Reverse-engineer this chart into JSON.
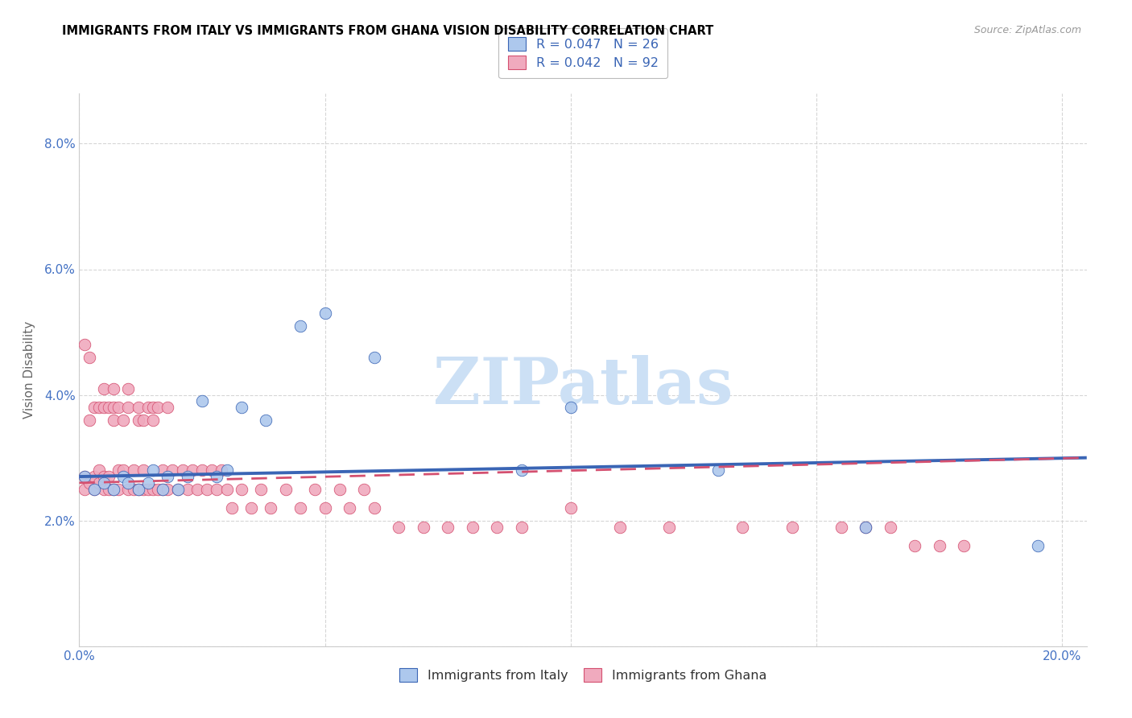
{
  "title": "IMMIGRANTS FROM ITALY VS IMMIGRANTS FROM GHANA VISION DISABILITY CORRELATION CHART",
  "source": "Source: ZipAtlas.com",
  "ylabel": "Vision Disability",
  "xlim": [
    0.0,
    0.205
  ],
  "ylim": [
    0.0,
    0.088
  ],
  "italy_R": 0.047,
  "italy_N": 26,
  "ghana_R": 0.042,
  "ghana_N": 92,
  "italy_color": "#adc8ed",
  "ghana_color": "#f0aabe",
  "italy_line_color": "#3a65b5",
  "ghana_line_color": "#d45070",
  "italy_x": [
    0.001,
    0.003,
    0.005,
    0.007,
    0.009,
    0.01,
    0.012,
    0.014,
    0.015,
    0.017,
    0.018,
    0.02,
    0.022,
    0.025,
    0.028,
    0.03,
    0.033,
    0.038,
    0.045,
    0.05,
    0.06,
    0.09,
    0.1,
    0.13,
    0.16,
    0.195
  ],
  "italy_y": [
    0.027,
    0.025,
    0.026,
    0.025,
    0.027,
    0.026,
    0.025,
    0.026,
    0.028,
    0.025,
    0.027,
    0.025,
    0.027,
    0.039,
    0.027,
    0.028,
    0.038,
    0.036,
    0.051,
    0.053,
    0.046,
    0.028,
    0.038,
    0.028,
    0.019,
    0.016
  ],
  "ghana_x": [
    0.001,
    0.001,
    0.001,
    0.002,
    0.002,
    0.002,
    0.003,
    0.003,
    0.003,
    0.004,
    0.004,
    0.004,
    0.005,
    0.005,
    0.005,
    0.005,
    0.006,
    0.006,
    0.006,
    0.007,
    0.007,
    0.007,
    0.007,
    0.008,
    0.008,
    0.008,
    0.009,
    0.009,
    0.01,
    0.01,
    0.01,
    0.011,
    0.011,
    0.012,
    0.012,
    0.012,
    0.013,
    0.013,
    0.013,
    0.014,
    0.014,
    0.015,
    0.015,
    0.015,
    0.016,
    0.016,
    0.017,
    0.017,
    0.018,
    0.018,
    0.019,
    0.02,
    0.021,
    0.022,
    0.023,
    0.024,
    0.025,
    0.026,
    0.027,
    0.028,
    0.029,
    0.03,
    0.031,
    0.033,
    0.035,
    0.037,
    0.039,
    0.042,
    0.045,
    0.048,
    0.05,
    0.053,
    0.055,
    0.058,
    0.06,
    0.065,
    0.07,
    0.075,
    0.08,
    0.085,
    0.09,
    0.1,
    0.11,
    0.12,
    0.135,
    0.145,
    0.155,
    0.16,
    0.165,
    0.17,
    0.175,
    0.18
  ],
  "ghana_y": [
    0.027,
    0.048,
    0.025,
    0.026,
    0.046,
    0.036,
    0.025,
    0.038,
    0.027,
    0.026,
    0.038,
    0.028,
    0.025,
    0.027,
    0.038,
    0.041,
    0.025,
    0.038,
    0.027,
    0.025,
    0.038,
    0.041,
    0.036,
    0.025,
    0.038,
    0.028,
    0.036,
    0.028,
    0.025,
    0.038,
    0.041,
    0.025,
    0.028,
    0.025,
    0.038,
    0.036,
    0.025,
    0.028,
    0.036,
    0.025,
    0.038,
    0.025,
    0.038,
    0.036,
    0.025,
    0.038,
    0.025,
    0.028,
    0.025,
    0.038,
    0.028,
    0.025,
    0.028,
    0.025,
    0.028,
    0.025,
    0.028,
    0.025,
    0.028,
    0.025,
    0.028,
    0.025,
    0.022,
    0.025,
    0.022,
    0.025,
    0.022,
    0.025,
    0.022,
    0.025,
    0.022,
    0.025,
    0.022,
    0.025,
    0.022,
    0.019,
    0.019,
    0.019,
    0.019,
    0.019,
    0.019,
    0.022,
    0.019,
    0.019,
    0.019,
    0.019,
    0.019,
    0.019,
    0.019,
    0.016,
    0.016,
    0.016
  ],
  "italy_trend_x": [
    0.0,
    0.205
  ],
  "italy_trend_y": [
    0.027,
    0.03
  ],
  "ghana_trend_x": [
    0.0,
    0.205
  ],
  "ghana_trend_y": [
    0.026,
    0.03
  ],
  "watermark_text": "ZIPatlas",
  "watermark_color": "#cce0f5",
  "background_color": "#ffffff",
  "grid_color": "#cccccc",
  "tick_color": "#4472c4",
  "title_color": "#000000",
  "source_color": "#999999",
  "ylabel_color": "#666666"
}
